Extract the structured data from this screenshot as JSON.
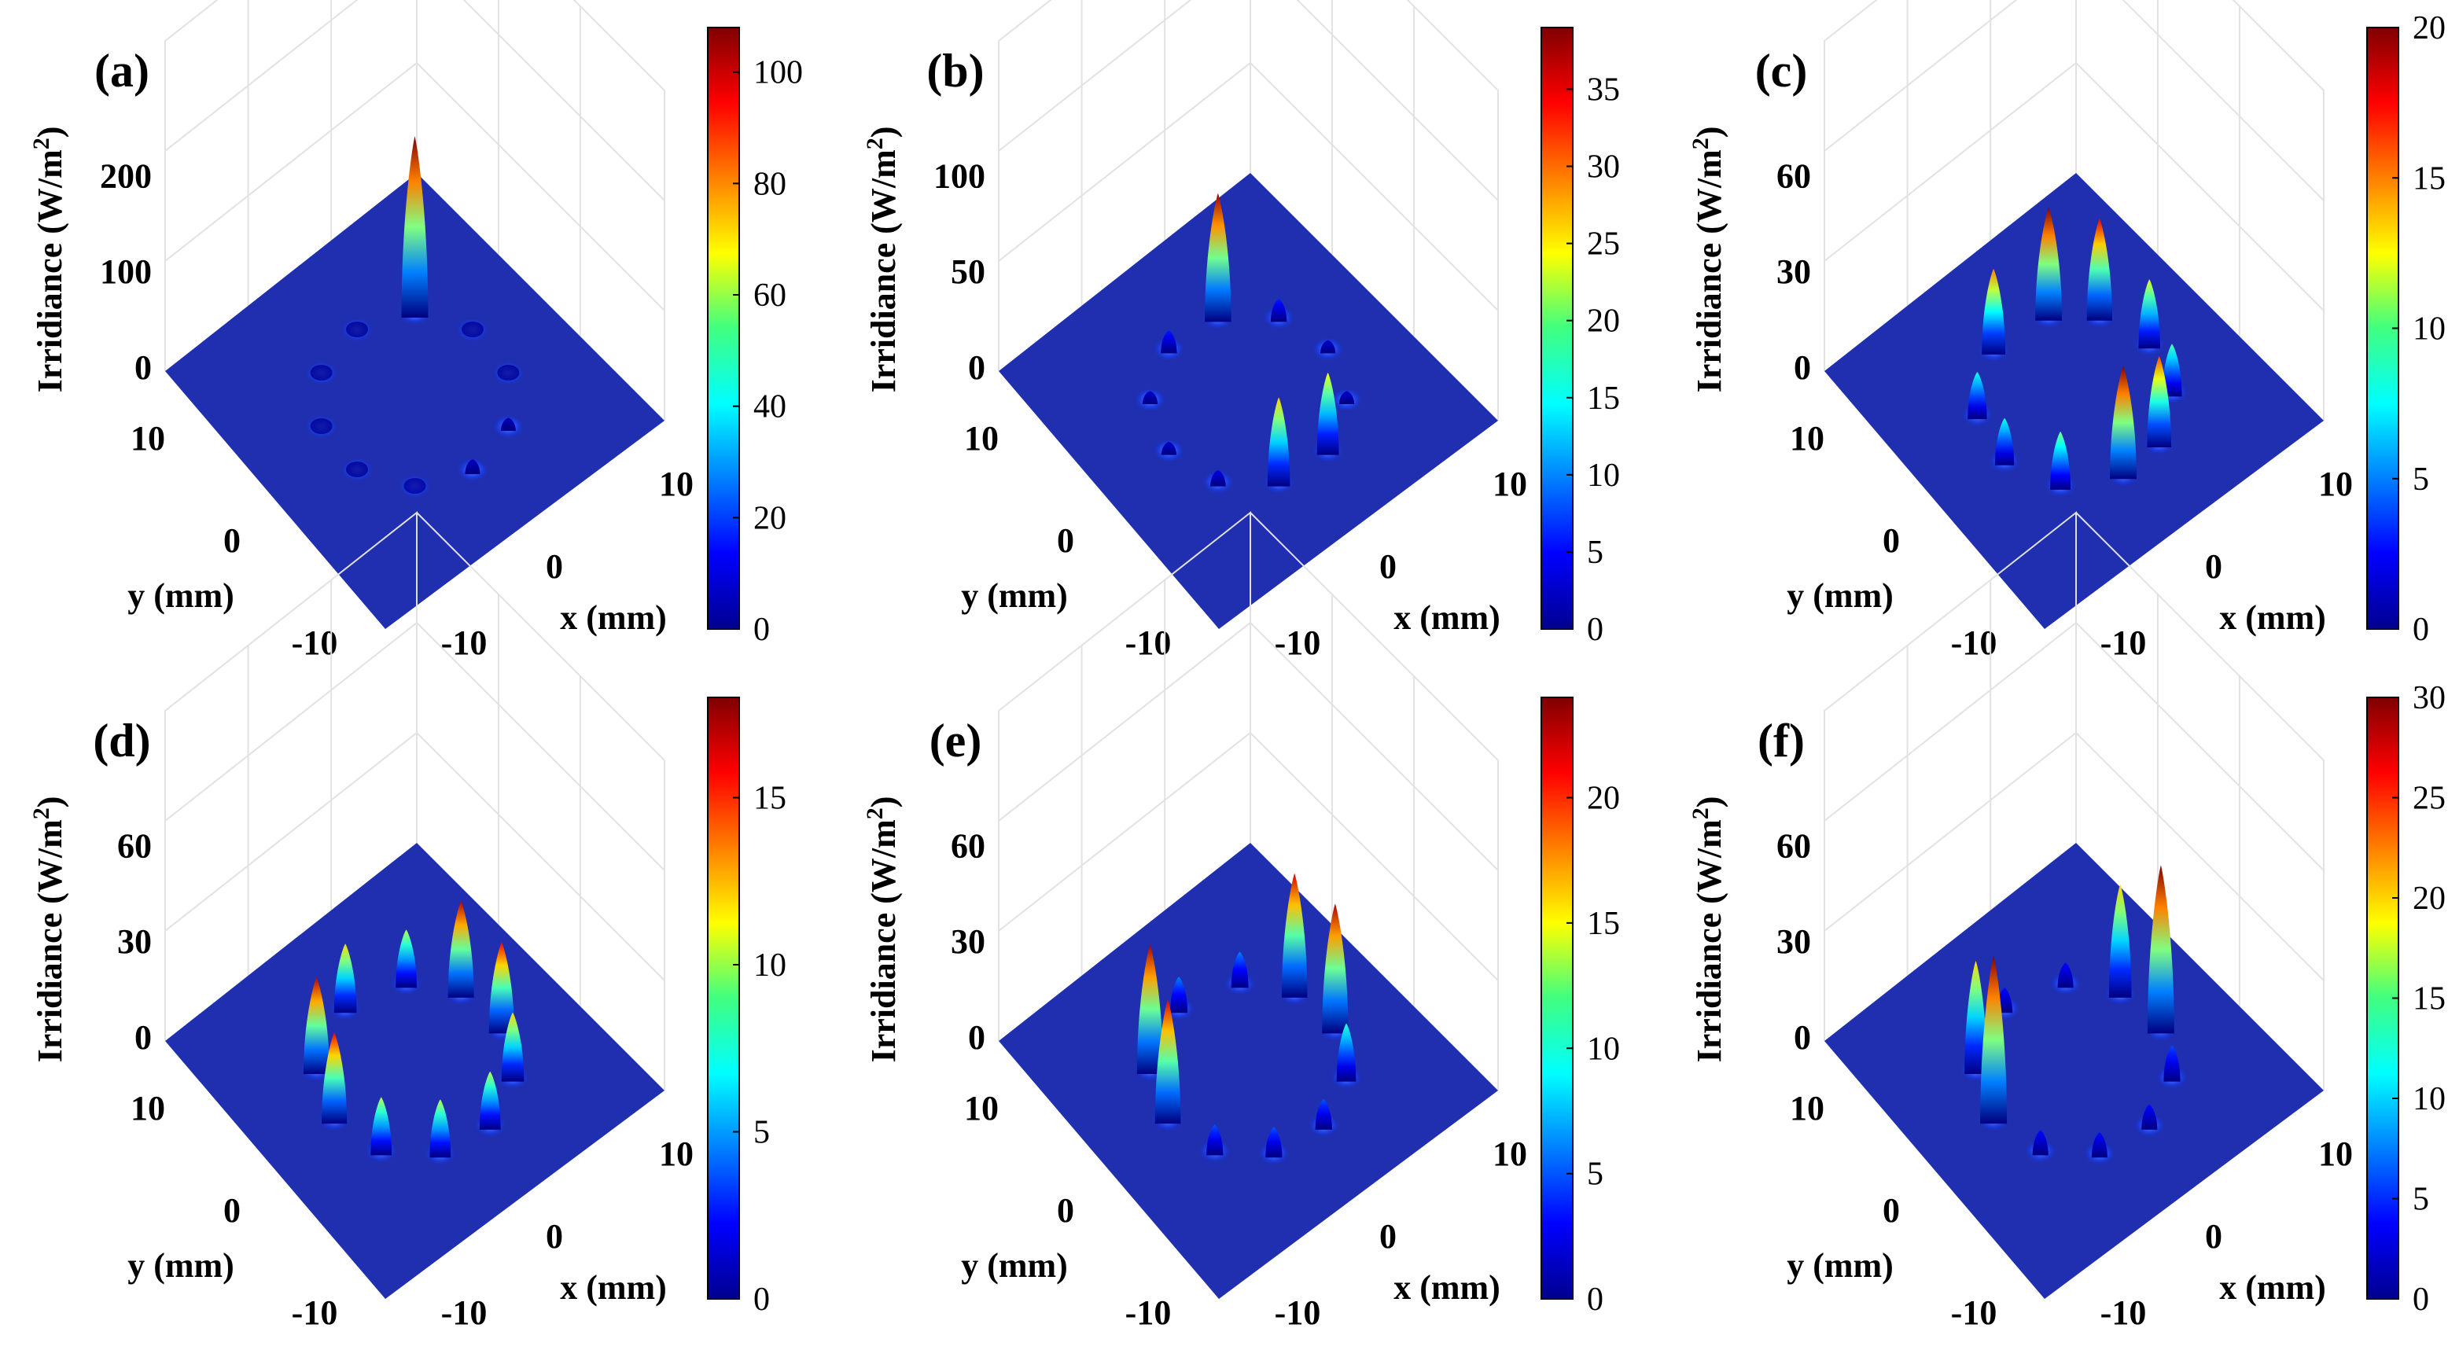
{
  "figure": {
    "title": ""
  },
  "chart_data": [
    {
      "type": "surface3d",
      "panel": "(a)",
      "zlabel": "Irridiance (W/m2)",
      "xlabel": "x (mm)",
      "ylabel": "y (mm)",
      "x_ticks": [
        "-10",
        "0",
        "10"
      ],
      "y_ticks": [
        "-10",
        "0",
        "10"
      ],
      "z_ticks": [
        "0",
        "100",
        "200"
      ],
      "zlim": [
        0,
        200
      ],
      "colorbar": {
        "min": 0,
        "max": 108,
        "ticks": [
          "0",
          "20",
          "40",
          "60",
          "80",
          "100"
        ]
      },
      "peaks": [
        {
          "angle_deg": 90,
          "height": 108
        },
        {
          "angle_deg": 126,
          "height": 2
        },
        {
          "angle_deg": 162,
          "height": 2
        },
        {
          "angle_deg": 198,
          "height": 2
        },
        {
          "angle_deg": 234,
          "height": 2
        },
        {
          "angle_deg": 270,
          "height": 3
        },
        {
          "angle_deg": 306,
          "height": 7
        },
        {
          "angle_deg": 342,
          "height": 6
        },
        {
          "angle_deg": 18,
          "height": 2
        },
        {
          "angle_deg": 54,
          "height": 2
        }
      ]
    },
    {
      "type": "surface3d",
      "panel": "(b)",
      "zlabel": "Irridiance (W/m2)",
      "xlabel": "x (mm)",
      "ylabel": "y (mm)",
      "x_ticks": [
        "-10",
        "0",
        "10"
      ],
      "y_ticks": [
        "-10",
        "0",
        "10"
      ],
      "z_ticks": [
        "0",
        "50",
        "100"
      ],
      "zlim": [
        0,
        100
      ],
      "colorbar": {
        "min": 0,
        "max": 39,
        "ticks": [
          "0",
          "5",
          "10",
          "15",
          "20",
          "25",
          "30",
          "35"
        ]
      },
      "peaks": [
        {
          "angle_deg": 108,
          "height": 38
        },
        {
          "angle_deg": 72,
          "height": 6
        },
        {
          "angle_deg": 36,
          "height": 3
        },
        {
          "angle_deg": 0,
          "height": 3
        },
        {
          "angle_deg": 324,
          "height": 24
        },
        {
          "angle_deg": 288,
          "height": 26
        },
        {
          "angle_deg": 252,
          "height": 4
        },
        {
          "angle_deg": 216,
          "height": 3
        },
        {
          "angle_deg": 180,
          "height": 3
        },
        {
          "angle_deg": 144,
          "height": 6
        }
      ]
    },
    {
      "type": "surface3d",
      "panel": "(c)",
      "zlabel": "Irridiance (W/m2)",
      "xlabel": "x (mm)",
      "ylabel": "y (mm)",
      "x_ticks": [
        "-10",
        "0",
        "10"
      ],
      "y_ticks": [
        "-10",
        "0",
        "10"
      ],
      "z_ticks": [
        "0",
        "30",
        "60"
      ],
      "zlim": [
        0,
        60
      ],
      "colorbar": {
        "min": 0,
        "max": 20,
        "ticks": [
          "0",
          "5",
          "10",
          "15",
          "20"
        ]
      },
      "peaks": [
        {
          "angle_deg": 105,
          "height": 20
        },
        {
          "angle_deg": 75,
          "height": 18
        },
        {
          "angle_deg": 40,
          "height": 12
        },
        {
          "angle_deg": 5,
          "height": 9
        },
        {
          "angle_deg": 330,
          "height": 16
        },
        {
          "angle_deg": 300,
          "height": 20
        },
        {
          "angle_deg": 262,
          "height": 10
        },
        {
          "angle_deg": 225,
          "height": 8
        },
        {
          "angle_deg": 190,
          "height": 8
        },
        {
          "angle_deg": 145,
          "height": 15
        }
      ]
    },
    {
      "type": "surface3d",
      "panel": "(d)",
      "zlabel": "Irridiance (W/m2)",
      "xlabel": "x (mm)",
      "ylabel": "y (mm)",
      "x_ticks": [
        "-10",
        "0",
        "10"
      ],
      "y_ticks": [
        "-10",
        "0",
        "10"
      ],
      "z_ticks": [
        "0",
        "30",
        "60"
      ],
      "zlim": [
        0,
        60
      ],
      "colorbar": {
        "min": 0,
        "max": 18,
        "ticks": [
          "0",
          "5",
          "10",
          "15"
        ]
      },
      "peaks": [
        {
          "angle_deg": 95,
          "height": 10
        },
        {
          "angle_deg": 62,
          "height": 17
        },
        {
          "angle_deg": 28,
          "height": 16
        },
        {
          "angle_deg": 355,
          "height": 12
        },
        {
          "angle_deg": 320,
          "height": 10
        },
        {
          "angle_deg": 285,
          "height": 10
        },
        {
          "angle_deg": 250,
          "height": 10
        },
        {
          "angle_deg": 215,
          "height": 16
        },
        {
          "angle_deg": 180,
          "height": 17
        },
        {
          "angle_deg": 135,
          "height": 12
        }
      ]
    },
    {
      "type": "surface3d",
      "panel": "(e)",
      "zlabel": "Irridiance (W/m2)",
      "xlabel": "x (mm)",
      "ylabel": "y (mm)",
      "x_ticks": [
        "-10",
        "0",
        "10"
      ],
      "y_ticks": [
        "-10",
        "0",
        "10"
      ],
      "z_ticks": [
        "0",
        "30",
        "60"
      ],
      "zlim": [
        0,
        60
      ],
      "colorbar": {
        "min": 0,
        "max": 24,
        "ticks": [
          "0",
          "5",
          "10",
          "15",
          "20"
        ]
      },
      "peaks": [
        {
          "angle_deg": 95,
          "height": 6
        },
        {
          "angle_deg": 62,
          "height": 22
        },
        {
          "angle_deg": 28,
          "height": 23
        },
        {
          "angle_deg": 355,
          "height": 10
        },
        {
          "angle_deg": 320,
          "height": 5
        },
        {
          "angle_deg": 285,
          "height": 5
        },
        {
          "angle_deg": 250,
          "height": 5
        },
        {
          "angle_deg": 215,
          "height": 22
        },
        {
          "angle_deg": 180,
          "height": 23
        },
        {
          "angle_deg": 135,
          "height": 6
        }
      ]
    },
    {
      "type": "surface3d",
      "panel": "(f)",
      "zlabel": "Irridiance (W/m2)",
      "xlabel": "x (mm)",
      "ylabel": "y (mm)",
      "x_ticks": [
        "-10",
        "0",
        "10"
      ],
      "y_ticks": [
        "-10",
        "0",
        "10"
      ],
      "z_ticks": [
        "0",
        "30",
        "60"
      ],
      "zlim": [
        0,
        60
      ],
      "colorbar": {
        "min": 0,
        "max": 30,
        "ticks": [
          "0",
          "5",
          "10",
          "15",
          "20",
          "25",
          "30"
        ]
      },
      "peaks": [
        {
          "angle_deg": 95,
          "height": 4
        },
        {
          "angle_deg": 62,
          "height": 20
        },
        {
          "angle_deg": 28,
          "height": 30
        },
        {
          "angle_deg": 355,
          "height": 6
        },
        {
          "angle_deg": 320,
          "height": 4
        },
        {
          "angle_deg": 285,
          "height": 4
        },
        {
          "angle_deg": 250,
          "height": 4
        },
        {
          "angle_deg": 215,
          "height": 30
        },
        {
          "angle_deg": 180,
          "height": 20
        },
        {
          "angle_deg": 135,
          "height": 4
        }
      ]
    }
  ]
}
